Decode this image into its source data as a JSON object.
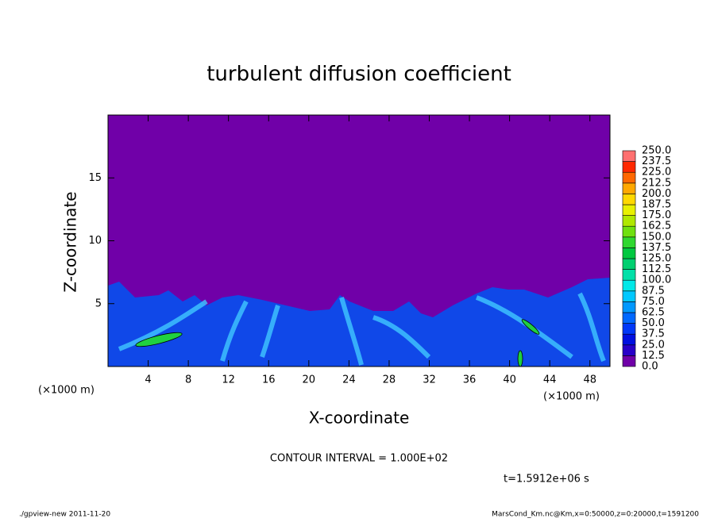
{
  "chart_data": {
    "type": "contour",
    "title": "turbulent diffusion coefficient",
    "xlabel": "X-coordinate",
    "ylabel": "Z-coordinate",
    "x_unit": "(×1000 m)",
    "x_unit_right": "(×1000 m)",
    "xlim": [
      0,
      50
    ],
    "ylim": [
      0,
      20
    ],
    "xticks": [
      4,
      8,
      12,
      16,
      20,
      24,
      28,
      32,
      36,
      40,
      44,
      48
    ],
    "yticks": [
      5,
      10,
      15
    ],
    "contour_note": "CONTOUR INTERVAL = 1.000E+02",
    "time_label": "t=1.5912e+06 s",
    "footer_left": "./gpview-new  2011-11-20",
    "footer_right": "MarsCond_Km.nc@Km,x=0:50000,z=0:20000,t=1591200",
    "colorbar": {
      "levels": [
        {
          "value": 0,
          "label": "0.0"
        },
        {
          "value": 12.5,
          "label": "12.5"
        },
        {
          "value": 25,
          "label": "25.0"
        },
        {
          "value": 37.5,
          "label": "37.5"
        },
        {
          "value": 50,
          "label": "50.0"
        },
        {
          "value": 62.5,
          "label": "62.5"
        },
        {
          "value": 75,
          "label": "75.0"
        },
        {
          "value": 87.5,
          "label": "87.5"
        },
        {
          "value": 100,
          "label": "100.0"
        },
        {
          "value": 112.5,
          "label": "112.5"
        },
        {
          "value": 125,
          "label": "125.0"
        },
        {
          "value": 137.5,
          "label": "137.5"
        },
        {
          "value": 150,
          "label": "150.0"
        },
        {
          "value": 162.5,
          "label": "162.5"
        },
        {
          "value": 175,
          "label": "175.0"
        },
        {
          "value": 187.5,
          "label": "187.5"
        },
        {
          "value": 200,
          "label": "200.0"
        },
        {
          "value": 212.5,
          "label": "212.5"
        },
        {
          "value": 225,
          "label": "225.0"
        },
        {
          "value": 237.5,
          "label": "237.5"
        },
        {
          "value": 250,
          "label": "250.0"
        }
      ],
      "colors": [
        "#7000a8",
        "#2800c8",
        "#0010e0",
        "#0038f8",
        "#0068ff",
        "#0098ff",
        "#00c8ff",
        "#00e8e8",
        "#00e0a8",
        "#00d070",
        "#00c840",
        "#30d830",
        "#70e010",
        "#b0e800",
        "#e8f000",
        "#ffd800",
        "#ffa800",
        "#ff6800",
        "#ff2800",
        "#ff7070"
      ]
    }
  }
}
